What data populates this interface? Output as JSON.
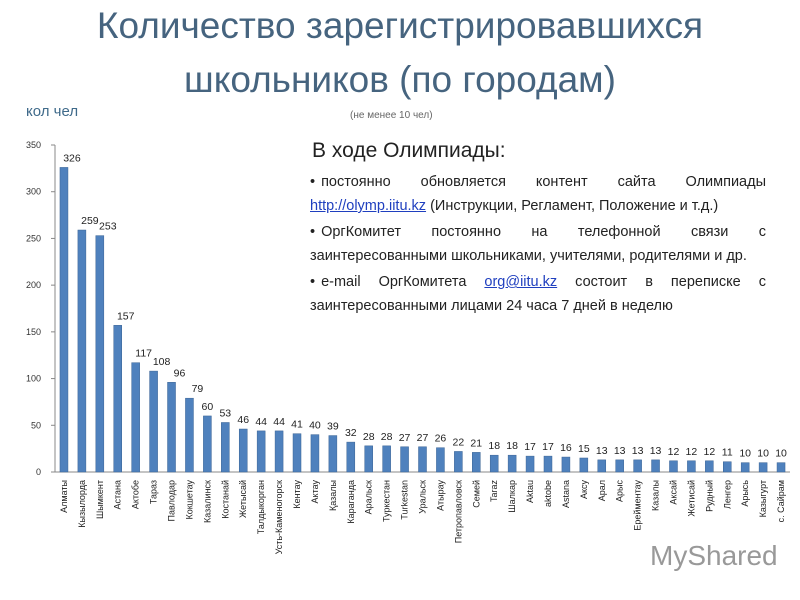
{
  "chart_data": {
    "type": "bar",
    "title": [
      "Количество зарегистрировавшихся",
      "школьников (по городам)"
    ],
    "y_label": "кол чел",
    "subtitle": "(не менее 10 чел)",
    "categories": [
      "Алматы",
      "Кызылорда",
      "Шымкент",
      "Астана",
      "Актобе",
      "Тараз",
      "Павлодар",
      "Кокшетау",
      "Казалинск",
      "Костанай",
      "Жетысай",
      "Талдыкорган",
      "Усть-Каменогорск",
      "Кентау",
      "Актау",
      "Қазалы",
      "Караганда",
      "Аральск",
      "Туркестан",
      "Turkestan",
      "Уральск",
      "Атырау",
      "Петропавловск",
      "Семей",
      "Taraz",
      "Шалкар",
      "Aktau",
      "aktobe",
      "Astana",
      "Аксу",
      "Арал",
      "Арыс",
      "Ерейментау",
      "Казалы",
      "Аксай",
      "Жетисай",
      "Рудный",
      "Ленгер",
      "Арысь",
      "Казыгурт",
      "с. Сайрам"
    ],
    "values": [
      326,
      259,
      253,
      157,
      117,
      108,
      96,
      79,
      60,
      53,
      46,
      44,
      44,
      41,
      40,
      39,
      32,
      28,
      28,
      27,
      27,
      26,
      22,
      21,
      18,
      18,
      17,
      17,
      16,
      15,
      13,
      13,
      13,
      13,
      12,
      12,
      12,
      11,
      10,
      10,
      10
    ],
    "color": "#4f81bd",
    "ylim": [
      0,
      350
    ],
    "yticks": [
      0,
      50,
      100,
      150,
      200,
      250,
      300,
      350
    ],
    "grid": false,
    "note": {
      "heading": "В ходе Олимпиады:",
      "items": [
        {
          "text": "постоянно обновляется контент сайта Олимпиады ",
          "link": "http://olymp.iitu.kz",
          "after": " (Инструкции, Регламент, Положение и т.д.)"
        },
        {
          "text": "ОргКомитет постоянно на телефонной связи с заинтересованными школьниками, учителями, родителями и др."
        },
        {
          "text": "e-mail ОргКомитета ",
          "link": "org@iitu.kz",
          "after": " состоит в переписке с заинтересованными лицами 24 часа 7 дней в неделю"
        }
      ]
    },
    "watermark": "MyShared"
  }
}
